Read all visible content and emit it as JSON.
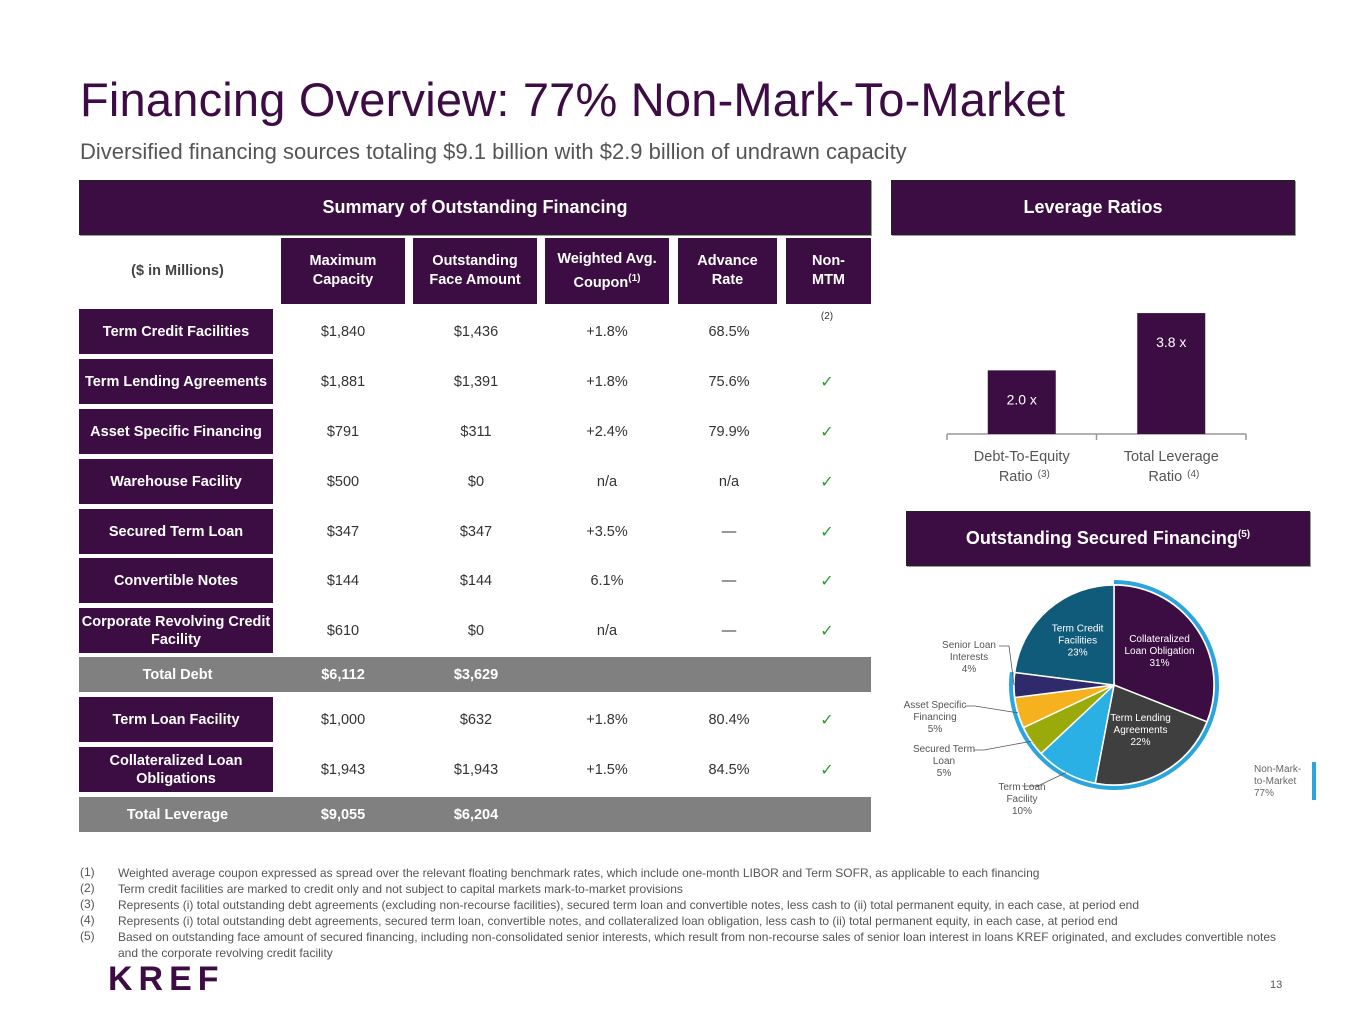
{
  "page": {
    "title": "Financing Overview: 77% Non-Mark-To-Market",
    "subtitle": "Diversified financing sources totaling $9.1 billion with $2.9 billion of undrawn capacity",
    "page_number": "13",
    "logo": "KREF"
  },
  "summary": {
    "header": "Summary of Outstanding Financing",
    "units_label": "($ in Millions)",
    "columns": [
      {
        "line1": "Maximum",
        "line2": "Capacity",
        "sup": ""
      },
      {
        "line1": "Outstanding",
        "line2": "Face Amount",
        "sup": ""
      },
      {
        "line1": "Weighted Avg.",
        "line2": "Coupon",
        "sup": "(1)"
      },
      {
        "line1": "Advance",
        "line2": "Rate",
        "sup": ""
      },
      {
        "line1": "Non-",
        "line2": "MTM",
        "sup": ""
      }
    ],
    "rows": [
      {
        "label": "Term Credit Facilities",
        "max": "$1,840",
        "outstanding": "$1,436",
        "coupon": "+1.8%",
        "advance": "68.5%",
        "mtm": "(2)"
      },
      {
        "label": "Term Lending Agreements",
        "max": "$1,881",
        "outstanding": "$1,391",
        "coupon": "+1.8%",
        "advance": "75.6%",
        "mtm": "✓"
      },
      {
        "label": "Asset Specific Financing",
        "max": "$791",
        "outstanding": "$311",
        "coupon": "+2.4%",
        "advance": "79.9%",
        "mtm": "✓"
      },
      {
        "label": "Warehouse Facility",
        "max": "$500",
        "outstanding": "$0",
        "coupon": "n/a",
        "advance": "n/a",
        "mtm": "✓"
      },
      {
        "label": "Secured Term Loan",
        "max": "$347",
        "outstanding": "$347",
        "coupon": "+3.5%",
        "advance": "—",
        "mtm": "✓"
      },
      {
        "label": "Convertible Notes",
        "max": "$144",
        "outstanding": "$144",
        "coupon": "6.1%",
        "advance": "—",
        "mtm": "✓"
      },
      {
        "label": "Corporate Revolving Credit Facility",
        "max": "$610",
        "outstanding": "$0",
        "coupon": "n/a",
        "advance": "—",
        "mtm": "✓"
      }
    ],
    "total_debt": {
      "label": "Total Debt",
      "max": "$6,112",
      "outstanding": "$3,629"
    },
    "rows2": [
      {
        "label": "Term Loan Facility",
        "max": "$1,000",
        "outstanding": "$632",
        "coupon": "+1.8%",
        "advance": "80.4%",
        "mtm": "✓"
      },
      {
        "label": "Collateralized Loan Obligations",
        "max": "$1,943",
        "outstanding": "$1,943",
        "coupon": "+1.5%",
        "advance": "84.5%",
        "mtm": "✓"
      }
    ],
    "total_leverage": {
      "label": "Total Leverage",
      "max": "$9,055",
      "outstanding": "$6,204"
    }
  },
  "leverage": {
    "header": "Leverage Ratios"
  },
  "secured": {
    "header": "Outstanding Secured Financing",
    "header_sup": "(5)",
    "non_mtm_label": "Non-Mark-to-Market",
    "non_mtm_label_l1": "Non-Mark-",
    "non_mtm_label_l2": "to-Market",
    "non_mtm_pct": "77%"
  },
  "chart_data": [
    {
      "type": "bar",
      "title": "Leverage Ratios",
      "categories": [
        "Debt-To-Equity Ratio",
        "Total Leverage Ratio"
      ],
      "category_line1": [
        "Debt-To-Equity",
        "Total Leverage"
      ],
      "category_line2": [
        "Ratio",
        "Ratio"
      ],
      "category_sup": [
        "(3)",
        "(4)"
      ],
      "values": [
        2.0,
        3.8
      ],
      "value_labels": [
        "2.0 x",
        "3.8 x"
      ],
      "ylim": [
        0,
        4.4
      ],
      "color": "#3c0d43"
    },
    {
      "type": "pie",
      "title": "Outstanding Secured Financing",
      "labels": [
        "Collateralized Loan Obligation",
        "Term Lending Agreements",
        "Term Loan Facility",
        "Secured Term Loan",
        "Asset Specific Financing",
        "Senior Loan Interests",
        "Term Credit Facilities"
      ],
      "values": [
        31,
        22,
        10,
        5,
        5,
        4,
        23
      ],
      "value_labels": [
        "31%",
        "22%",
        "10%",
        "5%",
        "5%",
        "4%",
        "23%"
      ],
      "colors": [
        "#3c0d43",
        "#3f3f3f",
        "#2ab0e4",
        "#9aaa0a",
        "#f5b21e",
        "#2e2a6b",
        "#105a7a"
      ],
      "label_lines": [
        [
          "Collateralized",
          "Loan Obligation"
        ],
        [
          "Term Lending",
          "Agreements"
        ],
        [
          "Term Loan",
          "Facility"
        ],
        [
          "Secured Term",
          "Loan"
        ],
        [
          "Asset Specific",
          "Financing"
        ],
        [
          "Senior Loan",
          "Interests"
        ],
        [
          "Term Credit",
          "Facilities"
        ]
      ],
      "non_mtm_arc_pct": 77
    }
  ],
  "footnotes": [
    {
      "num": "(1)",
      "text": "Weighted average coupon expressed as spread over the relevant floating benchmark rates, which include one-month LIBOR and Term SOFR, as applicable to each financing"
    },
    {
      "num": "(2)",
      "text": "Term credit facilities are marked to credit only and not subject to capital markets mark-to-market provisions"
    },
    {
      "num": "(3)",
      "text": "Represents (i) total outstanding debt agreements (excluding non-recourse facilities), secured term loan and convertible notes, less cash to (ii) total permanent equity, in each case, at period end"
    },
    {
      "num": "(4)",
      "text": "Represents (i) total outstanding debt agreements, secured term loan, convertible notes, and collateralized loan obligation, less cash to (ii) total permanent equity, in each case, at period end"
    },
    {
      "num": "(5)",
      "text": "Based on outstanding face amount of secured financing, including non-consolidated senior interests, which result from non-recourse sales of senior loan interest in loans KREF originated, and excludes convertible notes and the corporate revolving credit facility"
    }
  ]
}
